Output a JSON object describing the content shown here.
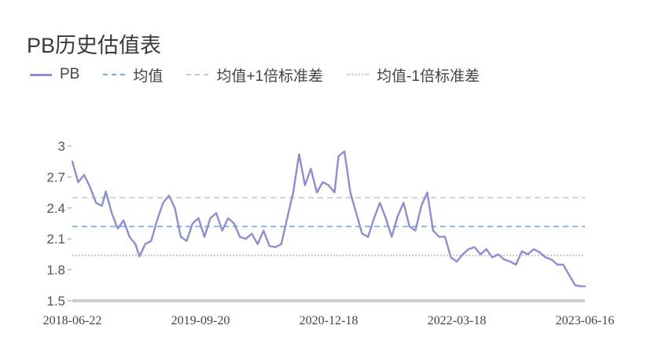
{
  "title": "PB历史估值表",
  "legend": [
    {
      "label": "PB",
      "style": "solid",
      "color": "#8d8dd6"
    },
    {
      "label": "均值",
      "style": "dashed",
      "color": "#7aa7e6"
    },
    {
      "label": "均值+1倍标准差",
      "style": "dashed",
      "color": "#c8c8c8"
    },
    {
      "label": "均值-1倍标准差",
      "style": "dotted",
      "color": "#c8c8c8"
    }
  ],
  "chart_data": {
    "type": "line",
    "title": "PB历史估值表",
    "xlabel": "",
    "ylabel": "",
    "ylim": [
      1.5,
      3.0
    ],
    "yticks": [
      3,
      2.7,
      2.4,
      2.1,
      1.8,
      1.5
    ],
    "ytick_labels": [
      "3",
      "2.7",
      "2.4",
      "2.1",
      "1.8",
      "1.5"
    ],
    "x_tick_labels": [
      "2018-06-22",
      "2019-09-20",
      "2020-12-18",
      "2022-03-18",
      "2023-06-16"
    ],
    "xlim": [
      "2018-06-22",
      "2023-06-16"
    ],
    "grid": false,
    "legend_position": "top-left",
    "series": [
      {
        "name": "PB",
        "color": "#8d8dd6",
        "points": [
          [
            "2018-06-22",
            2.85
          ],
          [
            "2018-07-13",
            2.65
          ],
          [
            "2018-08-03",
            2.72
          ],
          [
            "2018-08-24",
            2.6
          ],
          [
            "2018-09-14",
            2.45
          ],
          [
            "2018-10-05",
            2.42
          ],
          [
            "2018-10-19",
            2.56
          ],
          [
            "2018-11-09",
            2.35
          ],
          [
            "2018-11-30",
            2.2
          ],
          [
            "2018-12-21",
            2.28
          ],
          [
            "2019-01-11",
            2.12
          ],
          [
            "2019-02-01",
            2.05
          ],
          [
            "2019-02-15",
            1.93
          ],
          [
            "2019-03-08",
            2.05
          ],
          [
            "2019-03-29",
            2.08
          ],
          [
            "2019-04-19",
            2.28
          ],
          [
            "2019-05-10",
            2.45
          ],
          [
            "2019-05-31",
            2.52
          ],
          [
            "2019-06-21",
            2.4
          ],
          [
            "2019-07-12",
            2.12
          ],
          [
            "2019-08-02",
            2.08
          ],
          [
            "2019-08-23",
            2.25
          ],
          [
            "2019-09-13",
            2.3
          ],
          [
            "2019-10-04",
            2.12
          ],
          [
            "2019-10-25",
            2.3
          ],
          [
            "2019-11-15",
            2.35
          ],
          [
            "2019-12-06",
            2.18
          ],
          [
            "2019-12-27",
            2.3
          ],
          [
            "2020-01-17",
            2.25
          ],
          [
            "2020-02-07",
            2.12
          ],
          [
            "2020-02-28",
            2.1
          ],
          [
            "2020-03-20",
            2.15
          ],
          [
            "2020-04-10",
            2.05
          ],
          [
            "2020-05-01",
            2.18
          ],
          [
            "2020-05-22",
            2.03
          ],
          [
            "2020-06-12",
            2.02
          ],
          [
            "2020-07-03",
            2.05
          ],
          [
            "2020-07-24",
            2.3
          ],
          [
            "2020-08-14",
            2.55
          ],
          [
            "2020-09-04",
            2.92
          ],
          [
            "2020-09-25",
            2.62
          ],
          [
            "2020-10-16",
            2.78
          ],
          [
            "2020-11-06",
            2.55
          ],
          [
            "2020-11-27",
            2.65
          ],
          [
            "2020-12-18",
            2.62
          ],
          [
            "2021-01-08",
            2.55
          ],
          [
            "2021-01-22",
            2.9
          ],
          [
            "2021-02-12",
            2.95
          ],
          [
            "2021-03-05",
            2.55
          ],
          [
            "2021-03-26",
            2.35
          ],
          [
            "2021-04-16",
            2.15
          ],
          [
            "2021-05-07",
            2.12
          ],
          [
            "2021-05-28",
            2.3
          ],
          [
            "2021-06-18",
            2.45
          ],
          [
            "2021-07-09",
            2.3
          ],
          [
            "2021-07-30",
            2.12
          ],
          [
            "2021-08-20",
            2.32
          ],
          [
            "2021-09-10",
            2.45
          ],
          [
            "2021-10-01",
            2.22
          ],
          [
            "2021-10-22",
            2.18
          ],
          [
            "2021-11-12",
            2.42
          ],
          [
            "2021-12-03",
            2.55
          ],
          [
            "2021-12-24",
            2.18
          ],
          [
            "2022-01-14",
            2.12
          ],
          [
            "2022-02-04",
            2.12
          ],
          [
            "2022-02-25",
            1.92
          ],
          [
            "2022-03-18",
            1.88
          ],
          [
            "2022-04-08",
            1.95
          ],
          [
            "2022-04-29",
            2.0
          ],
          [
            "2022-05-20",
            2.02
          ],
          [
            "2022-06-10",
            1.95
          ],
          [
            "2022-07-01",
            2.0
          ],
          [
            "2022-07-22",
            1.92
          ],
          [
            "2022-08-12",
            1.95
          ],
          [
            "2022-09-02",
            1.9
          ],
          [
            "2022-09-23",
            1.88
          ],
          [
            "2022-10-14",
            1.85
          ],
          [
            "2022-11-04",
            1.98
          ],
          [
            "2022-11-25",
            1.95
          ],
          [
            "2022-12-16",
            2.0
          ],
          [
            "2023-01-06",
            1.97
          ],
          [
            "2023-01-27",
            1.92
          ],
          [
            "2023-02-17",
            1.9
          ],
          [
            "2023-03-10",
            1.85
          ],
          [
            "2023-03-31",
            1.85
          ],
          [
            "2023-04-21",
            1.75
          ],
          [
            "2023-05-12",
            1.65
          ],
          [
            "2023-06-02",
            1.64
          ],
          [
            "2023-06-16",
            1.64
          ]
        ]
      },
      {
        "name": "均值",
        "color": "#7aa7e6",
        "style": "dashed",
        "constant": 2.22
      },
      {
        "name": "均值+1倍标准差",
        "color": "#c8c8c8",
        "style": "dashed",
        "constant": 2.5
      },
      {
        "name": "均值-1倍标准差",
        "color": "#c8c8c8",
        "style": "dotted",
        "constant": 1.94
      }
    ]
  }
}
